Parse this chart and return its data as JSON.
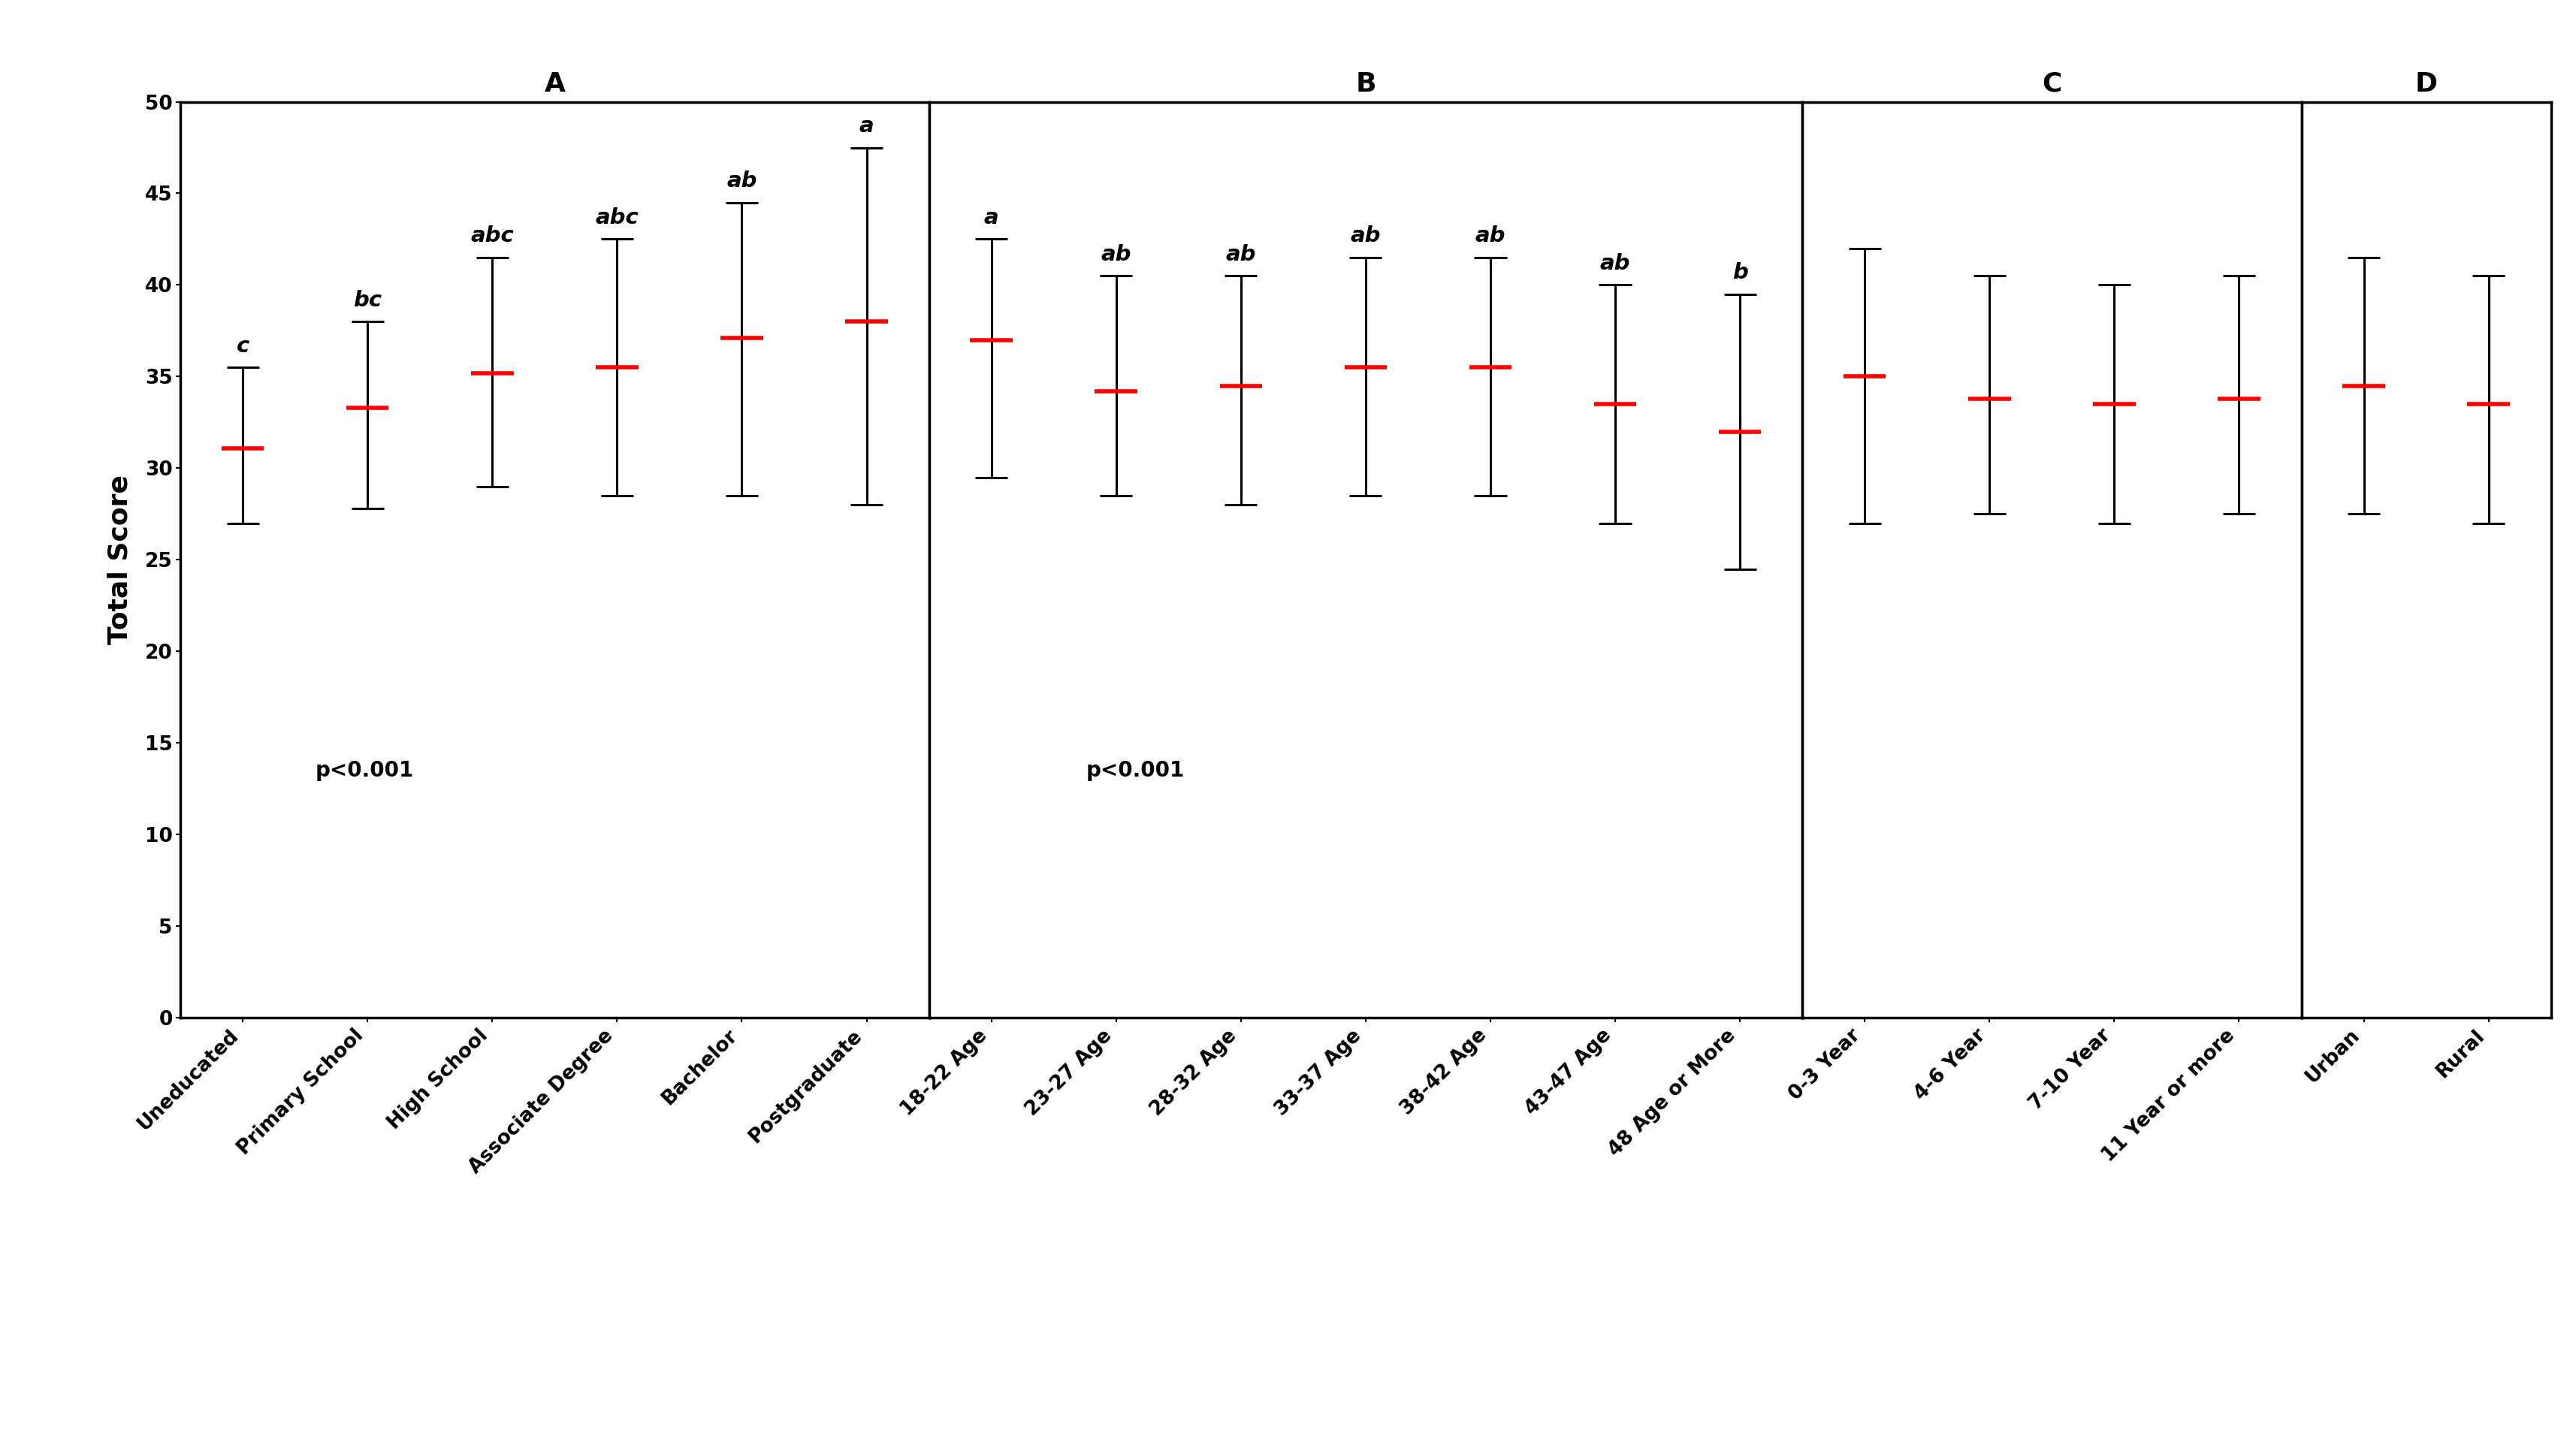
{
  "panels": [
    {
      "label": "A",
      "categories": [
        "Uneducated",
        "Primary School",
        "High School",
        "Associate Degree",
        "Bachelor",
        "Postgraduate"
      ],
      "medians": [
        31.1,
        33.3,
        35.2,
        35.5,
        37.1,
        38.0
      ],
      "lower": [
        27.0,
        27.8,
        29.0,
        28.5,
        28.5,
        28.0
      ],
      "upper": [
        35.5,
        38.0,
        41.5,
        42.5,
        44.5,
        47.5
      ],
      "sig_letters": [
        "c",
        "bc",
        "abc",
        "abc",
        "ab",
        "a"
      ],
      "p_text": "p<0.001"
    },
    {
      "label": "B",
      "categories": [
        "18-22 Age",
        "23-27 Age",
        "28-32 Age",
        "33-37 Age",
        "38-42 Age",
        "43-47 Age",
        "48 Age or More"
      ],
      "medians": [
        37.0,
        34.2,
        34.5,
        35.5,
        35.5,
        33.5,
        32.0
      ],
      "lower": [
        29.5,
        28.5,
        28.0,
        28.5,
        28.5,
        27.0,
        24.5
      ],
      "upper": [
        42.5,
        40.5,
        40.5,
        41.5,
        41.5,
        40.0,
        39.5
      ],
      "sig_letters": [
        "a",
        "ab",
        "ab",
        "ab",
        "ab",
        "ab",
        "b"
      ],
      "p_text": "p<0.001"
    },
    {
      "label": "C",
      "categories": [
        "0-3 Year",
        "4-6 Year",
        "7-10 Year",
        "11 Year or more"
      ],
      "medians": [
        35.0,
        33.8,
        33.5,
        33.8
      ],
      "lower": [
        27.0,
        27.5,
        27.0,
        27.5
      ],
      "upper": [
        42.0,
        40.5,
        40.0,
        40.5
      ],
      "sig_letters": [
        "",
        "",
        "",
        ""
      ],
      "p_text": ""
    },
    {
      "label": "D",
      "categories": [
        "Urban",
        "Rural"
      ],
      "medians": [
        34.5,
        33.5
      ],
      "lower": [
        27.5,
        27.0
      ],
      "upper": [
        41.5,
        40.5
      ],
      "sig_letters": [
        "",
        ""
      ],
      "p_text": ""
    }
  ],
  "ylabel": "Total Score",
  "ylim": [
    0,
    50
  ],
  "yticks": [
    0,
    5,
    10,
    15,
    20,
    25,
    30,
    35,
    40,
    45,
    50
  ],
  "median_color": "#FF0000",
  "error_color": "#000000",
  "background_color": "#FFFFFF",
  "panel_title_fontsize": 26,
  "ylabel_fontsize": 26,
  "tick_fontsize": 19,
  "letter_fontsize": 21,
  "p_fontsize": 20,
  "median_linewidth": 4.0,
  "cap_halfwidth": 0.13,
  "median_halfwidth": 0.17,
  "error_linewidth": 2.2,
  "spine_linewidth": 2.5
}
